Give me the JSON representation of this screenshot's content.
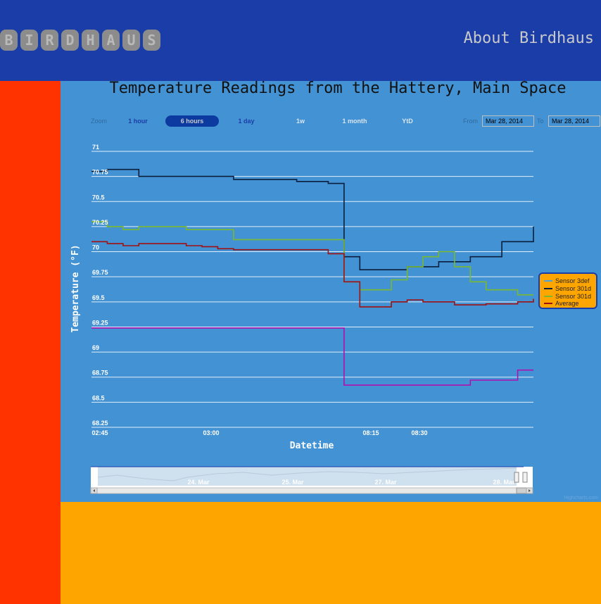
{
  "header": {
    "logo_letters": [
      "B",
      "I",
      "R",
      "D",
      "H",
      "A",
      "U",
      "S"
    ],
    "about_link": "About Birdhaus"
  },
  "chart_panel": {
    "zoom_label": "Zoom",
    "zoom_buttons": [
      {
        "label": "1 hour",
        "state": "normal"
      },
      {
        "label": "6 hours",
        "state": "active"
      },
      {
        "label": "1 day",
        "state": "normal"
      },
      {
        "label": "1w",
        "state": "disabled"
      },
      {
        "label": "1 month",
        "state": "disabled"
      },
      {
        "label": "YtD",
        "state": "disabled"
      }
    ],
    "from_label": "From",
    "from_value": "Mar 28, 2014",
    "to_label": "To",
    "to_value": "Mar 28, 2014",
    "credits": "Highcharts.com"
  },
  "navigator": {
    "labels": [
      "24. Mar",
      "25. Mar",
      "27. Mar",
      "28. Mar"
    ]
  },
  "chart_data": {
    "type": "line",
    "title": "Temperature Readings from the Hattery, Main Space",
    "xlabel": "Datetime",
    "ylabel": "Temperature (°F)",
    "ylim": [
      68.25,
      71
    ],
    "yticks": [
      "71",
      "70.75",
      "70.5",
      "70.25",
      "70",
      "69.75",
      "69.5",
      "69.25",
      "69",
      "68.75",
      "68.5",
      "68.25"
    ],
    "xticks": [
      "02:45",
      "03:00",
      "08:15",
      "08:30"
    ],
    "grid": true,
    "legend_position": "right",
    "series": [
      {
        "name": "Sensor 3def",
        "color": "#4da3e0",
        "values": []
      },
      {
        "name": "Sensor 301d",
        "color": "#0a1e3c",
        "values": [
          70.8,
          70.82,
          70.82,
          70.75,
          70.75,
          70.75,
          70.75,
          70.75,
          70.75,
          70.72,
          70.72,
          70.72,
          70.72,
          70.7,
          70.7,
          70.68,
          69.95,
          69.82,
          69.82,
          69.82,
          69.85,
          69.85,
          69.9,
          69.9,
          69.95,
          69.95,
          70.1,
          70.1,
          70.25
        ]
      },
      {
        "name": "Sensor 301d",
        "color": "#7ab82e",
        "values": [
          70.3,
          70.25,
          70.22,
          70.25,
          70.25,
          70.25,
          70.22,
          70.22,
          70.22,
          70.12,
          70.12,
          70.12,
          70.12,
          70.12,
          70.12,
          70.12,
          69.7,
          69.62,
          69.62,
          69.72,
          69.85,
          69.95,
          70.0,
          69.85,
          69.7,
          69.62,
          69.62,
          69.57,
          69.57
        ]
      },
      {
        "name": "Average",
        "color": "#a01010",
        "values": [
          70.1,
          70.08,
          70.06,
          70.08,
          70.08,
          70.08,
          70.06,
          70.05,
          70.03,
          70.02,
          70.02,
          70.02,
          70.02,
          70.02,
          70.02,
          69.98,
          69.7,
          69.45,
          69.45,
          69.5,
          69.52,
          69.5,
          69.5,
          69.47,
          69.47,
          69.48,
          69.48,
          69.5,
          69.53
        ]
      },
      {
        "name": "",
        "color": "#b010b0",
        "values": [
          69.24,
          69.24,
          69.24,
          69.24,
          69.24,
          69.24,
          69.24,
          69.24,
          69.24,
          69.24,
          69.24,
          69.24,
          69.24,
          69.24,
          69.24,
          69.24,
          68.67,
          68.67,
          68.67,
          68.67,
          68.67,
          68.67,
          68.67,
          68.67,
          68.72,
          68.72,
          68.72,
          68.82,
          68.82
        ]
      }
    ]
  }
}
